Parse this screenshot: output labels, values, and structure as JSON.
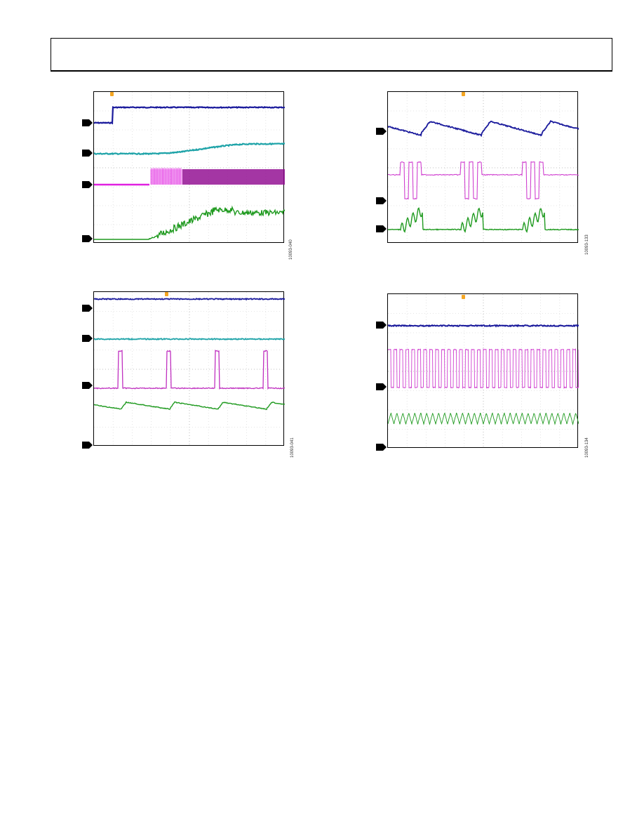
{
  "header": {
    "text": ""
  },
  "scopes": [
    {
      "id": "scope-1",
      "fig_id": "10093-040",
      "channels": [
        {
          "name": "ch1",
          "color": "#1a1a9c"
        },
        {
          "name": "ch2",
          "color": "#1ea3a8"
        },
        {
          "name": "ch3",
          "color": "#e020e0"
        },
        {
          "name": "ch4",
          "color": "#1f9a1f"
        }
      ]
    },
    {
      "id": "scope-2",
      "fig_id": "10093-133",
      "channels": [
        {
          "name": "ch1",
          "color": "#1a1a9c"
        },
        {
          "name": "ch2",
          "color": "#d040d0"
        },
        {
          "name": "ch3",
          "color": "#1f9a1f"
        }
      ]
    },
    {
      "id": "scope-3",
      "fig_id": "10093-041",
      "channels": [
        {
          "name": "ch1",
          "color": "#1a1a9c"
        },
        {
          "name": "ch2",
          "color": "#1ea3a8"
        },
        {
          "name": "ch3",
          "color": "#c030c0"
        },
        {
          "name": "ch4",
          "color": "#1f9a1f"
        }
      ]
    },
    {
      "id": "scope-4",
      "fig_id": "10093-134",
      "channels": [
        {
          "name": "ch1",
          "color": "#1a1a9c"
        },
        {
          "name": "ch2",
          "color": "#d040d0"
        },
        {
          "name": "ch3",
          "color": "#1f9a1f"
        }
      ]
    }
  ]
}
